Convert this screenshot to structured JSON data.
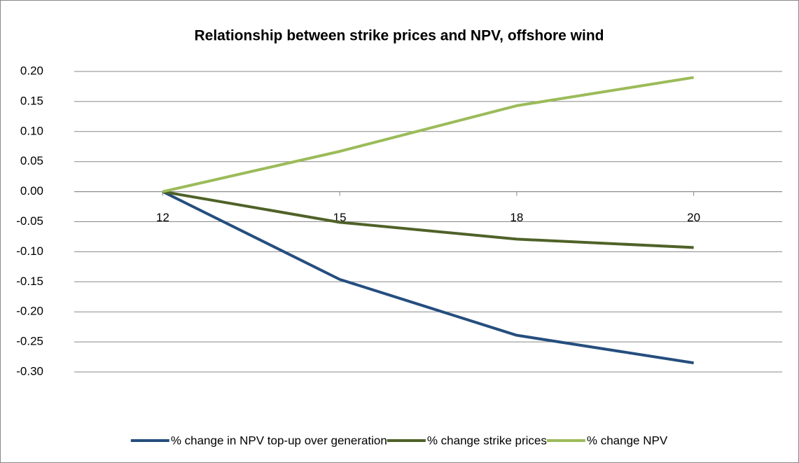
{
  "chart_data": {
    "type": "line",
    "title": "Relationship between strike prices and NPV, offshore wind",
    "categories": [
      "12",
      "15",
      "18",
      "20"
    ],
    "series": [
      {
        "name": "% change in NPV top-up over generation",
        "color": "#254e7e",
        "values": [
          0,
          -0.146,
          -0.239,
          -0.285
        ]
      },
      {
        "name": "% change strike prices",
        "color": "#4f6228",
        "values": [
          0,
          -0.051,
          -0.079,
          -0.093
        ]
      },
      {
        "name": "% change NPV",
        "color": "#9bbb59",
        "values": [
          0,
          0.067,
          0.143,
          0.19
        ]
      }
    ],
    "ylim": [
      -0.3,
      0.2
    ],
    "yticks": [
      {
        "value": 0.2,
        "label": "0.20"
      },
      0.15,
      {
        "value": 0.1,
        "label": "0.10"
      },
      0.05,
      {
        "value": 0,
        "label": "0.00"
      },
      -0.05,
      {
        "value": -0.1,
        "label": "-0.10"
      },
      -0.15,
      {
        "value": -0.2,
        "label": "-0.20"
      },
      -0.25,
      {
        "value": -0.3,
        "label": "-0.30"
      }
    ],
    "grid": true,
    "legend": "bottom"
  }
}
